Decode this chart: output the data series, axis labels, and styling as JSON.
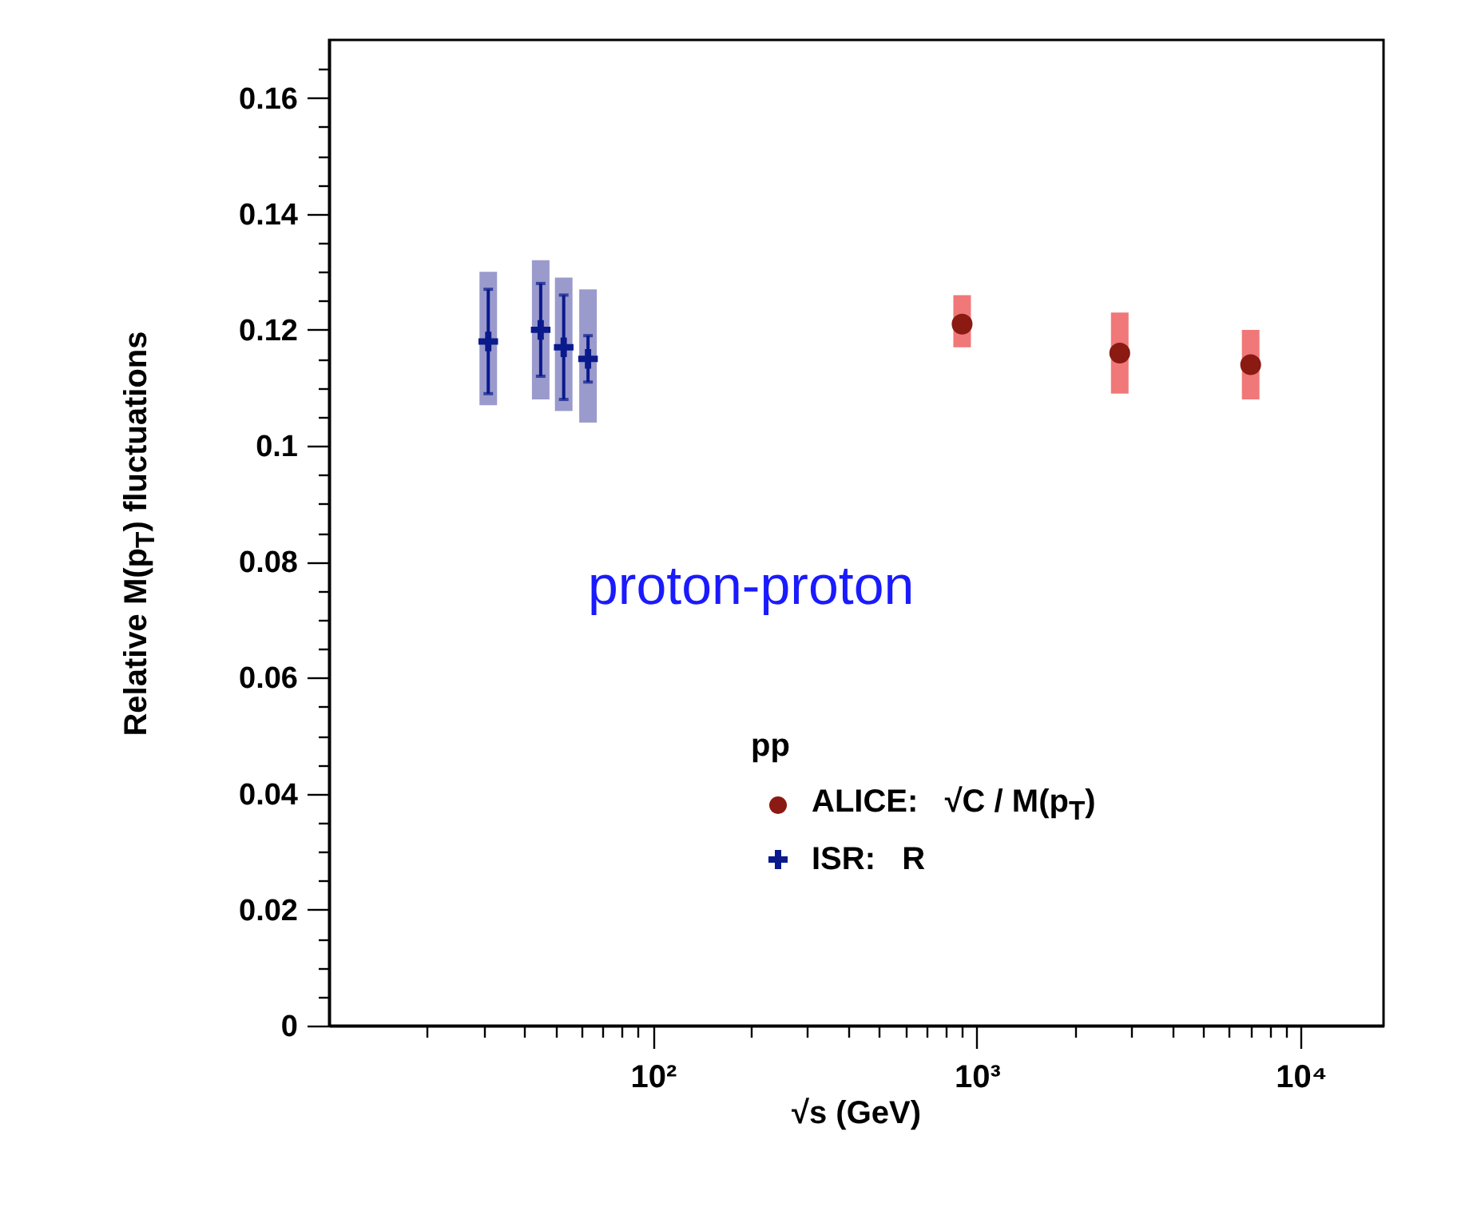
{
  "chart_data": {
    "type": "scatter",
    "xlabel": "√s  (GeV)",
    "ylabel": "Relative M(p$_{T}$) fluctuations",
    "legend_title": "pp",
    "legend": "bottom right",
    "log": "x",
    "grid": false,
    "xlim": [
      10,
      18000
    ],
    "xticks": [
      {
        "value": 20,
        "label": null
      },
      {
        "value": 30,
        "label": null
      },
      {
        "value": 40,
        "label": null
      },
      {
        "value": 50,
        "label": null
      },
      {
        "value": 60,
        "label": null
      },
      {
        "value": 70,
        "label": null
      },
      {
        "value": 80,
        "label": null
      },
      {
        "value": 90,
        "label": null
      },
      {
        "value": 100,
        "label": "10²"
      },
      {
        "value": 200,
        "label": null
      },
      {
        "value": 300,
        "label": null
      },
      {
        "value": 400,
        "label": null
      },
      {
        "value": 500,
        "label": null
      },
      {
        "value": 600,
        "label": null
      },
      {
        "value": 700,
        "label": null
      },
      {
        "value": 800,
        "label": null
      },
      {
        "value": 900,
        "label": null
      },
      {
        "value": 1000,
        "label": "10³"
      },
      {
        "value": 2000,
        "label": null
      },
      {
        "value": 3000,
        "label": null
      },
      {
        "value": 4000,
        "label": null
      },
      {
        "value": 5000,
        "label": null
      },
      {
        "value": 6000,
        "label": null
      },
      {
        "value": 7000,
        "label": null
      },
      {
        "value": 8000,
        "label": null
      },
      {
        "value": 9000,
        "label": null
      },
      {
        "value": 10000,
        "label": "10⁴"
      }
    ],
    "ylim": [
      0,
      0.17
    ],
    "yticks": [
      0,
      {
        "value": 0.005,
        "label": null
      },
      {
        "value": 0.01,
        "label": null
      },
      {
        "value": 0.015,
        "label": null
      },
      0.02,
      {
        "value": 0.025,
        "label": null
      },
      {
        "value": 0.03,
        "label": null
      },
      {
        "value": 0.035,
        "label": null
      },
      0.04,
      {
        "value": 0.045,
        "label": null
      },
      {
        "value": 0.05,
        "label": null
      },
      {
        "value": 0.055,
        "label": null
      },
      0.06,
      {
        "value": 0.065,
        "label": null
      },
      {
        "value": 0.07,
        "label": null
      },
      {
        "value": 0.075,
        "label": null
      },
      0.08,
      {
        "value": 0.085,
        "label": null
      },
      {
        "value": 0.09,
        "label": null
      },
      {
        "value": 0.095,
        "label": null
      },
      0.1,
      {
        "value": 0.105,
        "label": null
      },
      {
        "value": 0.11,
        "label": null
      },
      {
        "value": 0.115,
        "label": null
      },
      0.12,
      {
        "value": 0.125,
        "label": null
      },
      {
        "value": 0.13,
        "label": null
      },
      {
        "value": 0.135,
        "label": null
      },
      0.14,
      {
        "value": 0.145,
        "label": null
      },
      {
        "value": 0.15,
        "label": null
      },
      {
        "value": 0.155,
        "label": null
      },
      0.16,
      {
        "value": 0.165,
        "label": null
      }
    ],
    "annotations": [
      "proton-proton"
    ],
    "series": [
      {
        "type": "bar",
        "color": "#f07878",
        "x": [
          900,
          2760,
          7000
        ],
        "base": [
          0.117,
          0.109,
          0.108
        ],
        "values": [
          0.009,
          0.014,
          0.012
        ]
      },
      {
        "type": "bar",
        "color": "#9a9acc",
        "x": [
          31,
          45,
          53,
          63
        ],
        "base": [
          0.107,
          0.108,
          0.106,
          0.104
        ],
        "values": [
          0.023,
          0.024,
          0.023,
          0.023
        ]
      },
      {
        "name": "ALICE:   √C / M(p$_{T}$)",
        "color": "#8b1a12",
        "marker": "circle",
        "x": [
          900,
          2760,
          7000
        ],
        "values": [
          0.121,
          0.116,
          0.114
        ]
      },
      {
        "name": "ISR:   R",
        "color": "#0a1a8c",
        "marker": "cross",
        "x": [
          31,
          45,
          53,
          63
        ],
        "values": [
          0.118,
          0.12,
          0.117,
          0.115
        ],
        "errors": [
          [
            0.109,
            0.127
          ],
          [
            0.112,
            0.128
          ],
          [
            0.108,
            0.126
          ],
          [
            0.111,
            0.119
          ]
        ]
      }
    ]
  }
}
